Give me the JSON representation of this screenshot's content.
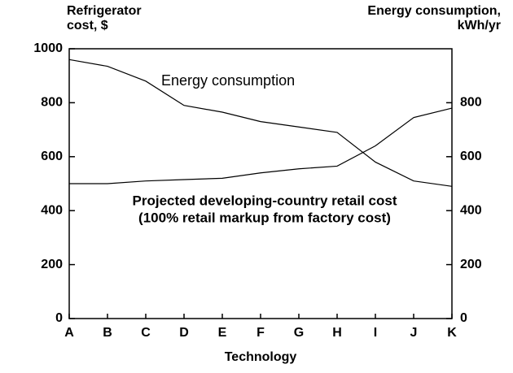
{
  "chart_data": {
    "type": "line",
    "ylabel": [
      "Refrigerator",
      "cost, $"
    ],
    "y2label": [
      "Energy consumption,",
      "kWh/yr"
    ],
    "xlabel": "Technology",
    "categories": [
      "A",
      "B",
      "C",
      "D",
      "E",
      "F",
      "G",
      "H",
      "I",
      "J",
      "K"
    ],
    "series": [
      {
        "name": "Energy consumption",
        "color": "#000000",
        "axis": "y2",
        "values": [
          960,
          935,
          880,
          790,
          765,
          730,
          710,
          690,
          580,
          510,
          490
        ]
      },
      {
        "name": [
          "Projected developing-country retail cost",
          "(100% retail markup from factory cost)"
        ],
        "color": "#000000",
        "values": [
          500,
          500,
          510,
          515,
          520,
          540,
          555,
          565,
          640,
          745,
          780
        ]
      }
    ],
    "ylim": [
      0,
      1000
    ],
    "yticks": [
      0,
      200,
      400,
      600,
      800,
      1000
    ],
    "y2lim": [
      0,
      1000
    ],
    "y2ticks": [
      0,
      200,
      400,
      600,
      800
    ]
  }
}
